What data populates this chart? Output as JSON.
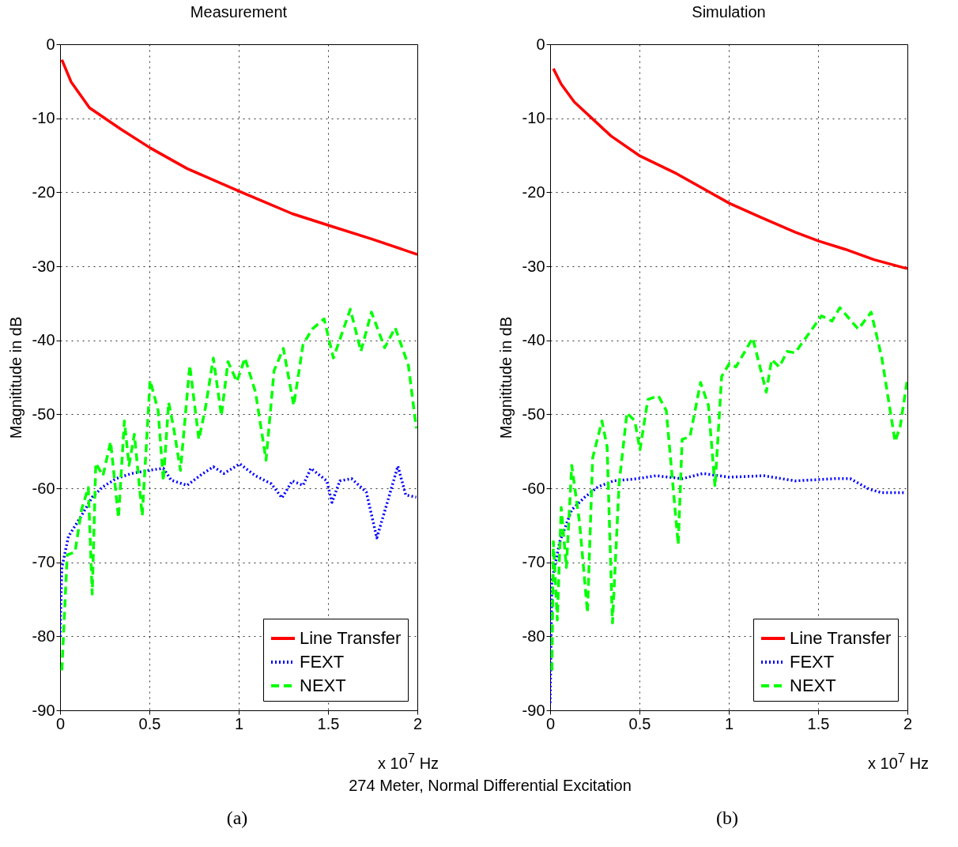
{
  "chart_data": [
    {
      "type": "line",
      "title": "Measurement",
      "xlabel": "x 10$^{7}$ Hz",
      "ylabel": "Magnititude in dB",
      "xlim": [
        0,
        2
      ],
      "xticks": [
        0,
        0.5,
        1,
        1.5,
        2
      ],
      "ylim": [
        -90,
        0
      ],
      "yticks": [
        -90,
        -80,
        -70,
        -60,
        -50,
        -40,
        -30,
        -20,
        -10,
        0
      ],
      "grid": true,
      "legend": "bottom right",
      "annotations": [
        "274 Meter, Normal Differential Excitation",
        "(a)"
      ],
      "series": [
        {
          "name": "Line Transfer",
          "color": "#ff0000",
          "line_style": "solid",
          "x": [
            0.01,
            0.062,
            0.165,
            0.342,
            0.504,
            0.711,
            1.006,
            1.3,
            1.507,
            1.743,
            2.0
          ],
          "values": [
            -2.1,
            -5.1,
            -8.6,
            -11.5,
            -14.0,
            -16.8,
            -19.9,
            -22.9,
            -24.5,
            -26.3,
            -28.4
          ]
        },
        {
          "name": "FEXT",
          "color": "#0000ff",
          "line_style": "dotted",
          "x": [
            0.0,
            0.01,
            0.047,
            0.12,
            0.18,
            0.24,
            0.313,
            0.4,
            0.49,
            0.578,
            0.622,
            0.711,
            0.8,
            0.858,
            0.917,
            1.006,
            1.094,
            1.183,
            1.242,
            1.3,
            1.36,
            1.404,
            1.493,
            1.522,
            1.566,
            1.632,
            1.714,
            1.773,
            1.832,
            1.891,
            1.935,
            1.994
          ],
          "values": [
            -80,
            -70.7,
            -66.5,
            -63.7,
            -61.2,
            -59.8,
            -58.7,
            -58.0,
            -57.6,
            -57.3,
            -58.9,
            -59.6,
            -58.0,
            -57.1,
            -58.0,
            -56.7,
            -58.3,
            -59.4,
            -61.3,
            -59.0,
            -59.6,
            -57.3,
            -59.0,
            -61.9,
            -59.0,
            -58.7,
            -60.5,
            -66.7,
            -61.9,
            -57.0,
            -60.9,
            -61.2
          ]
        },
        {
          "name": "NEXT",
          "color": "#00ff00",
          "line_style": "dashed",
          "x": [
            0.01,
            0.04,
            0.084,
            0.12,
            0.158,
            0.18,
            0.2,
            0.24,
            0.283,
            0.327,
            0.36,
            0.386,
            0.416,
            0.46,
            0.504,
            0.549,
            0.578,
            0.608,
            0.637,
            0.674,
            0.726,
            0.777,
            0.814,
            0.858,
            0.903,
            0.94,
            0.99,
            1.035,
            1.094,
            1.153,
            1.198,
            1.25,
            1.308,
            1.36,
            1.411,
            1.478,
            1.53,
            1.625,
            1.684,
            1.743,
            1.817,
            1.876,
            1.95,
            1.994
          ],
          "values": [
            -84.6,
            -69.0,
            -68.6,
            -62.9,
            -59.9,
            -74.3,
            -56.6,
            -58.3,
            -53.7,
            -64.0,
            -50.9,
            -56.9,
            -52.7,
            -63.7,
            -45.4,
            -49.5,
            -59.0,
            -48.4,
            -52.0,
            -57.6,
            -43.4,
            -53.4,
            -49.1,
            -42.4,
            -50.2,
            -42.9,
            -45.6,
            -42.4,
            -47.0,
            -56.2,
            -44.1,
            -41.1,
            -48.8,
            -40.6,
            -38.5,
            -37.1,
            -42.4,
            -35.8,
            -41.5,
            -36.2,
            -41.0,
            -38.3,
            -43.4,
            -51.9
          ]
        }
      ]
    },
    {
      "type": "line",
      "title": "Simulation",
      "xlabel": "x 10$^{7}$ Hz",
      "ylabel": "Magnititude in dB",
      "xlim": [
        0,
        2
      ],
      "xticks": [
        0,
        0.5,
        1,
        1.5,
        2
      ],
      "ylim": [
        -90,
        0
      ],
      "yticks": [
        -90,
        -80,
        -70,
        -60,
        -50,
        -40,
        -30,
        -20,
        -10,
        0
      ],
      "grid": true,
      "legend": "bottom right",
      "annotations": [
        "(b)"
      ],
      "series": [
        {
          "name": "Line Transfer",
          "color": "#ff0000",
          "line_style": "solid",
          "x": [
            0.018,
            0.062,
            0.135,
            0.341,
            0.503,
            0.709,
            1.004,
            1.18,
            1.372,
            1.504,
            1.651,
            1.813,
            1.98,
            2.0
          ],
          "values": [
            -3.3,
            -5.4,
            -7.8,
            -12.4,
            -15.1,
            -17.5,
            -21.5,
            -23.4,
            -25.4,
            -26.6,
            -27.7,
            -29.1,
            -30.2,
            -30.3
          ]
        },
        {
          "name": "FEXT",
          "color": "#0000ff",
          "line_style": "dotted",
          "x": [
            0.0,
            0.01,
            0.054,
            0.121,
            0.194,
            0.268,
            0.356,
            0.49,
            0.592,
            0.74,
            0.856,
            1.004,
            1.195,
            1.371,
            1.592,
            1.68,
            1.784,
            1.857,
            1.99
          ],
          "values": [
            -89,
            -72.5,
            -67.2,
            -62.9,
            -61.2,
            -59.8,
            -59.0,
            -58.7,
            -58.3,
            -58.7,
            -58.0,
            -58.5,
            -58.3,
            -59.0,
            -58.7,
            -58.7,
            -60.1,
            -60.6,
            -60.6
          ]
        },
        {
          "name": "NEXT",
          "color": "#00ff00",
          "line_style": "dashed",
          "x": [
            0.01,
            0.018,
            0.04,
            0.062,
            0.091,
            0.121,
            0.165,
            0.209,
            0.238,
            0.29,
            0.319,
            0.349,
            0.386,
            0.43,
            0.474,
            0.503,
            0.547,
            0.606,
            0.65,
            0.717,
            0.739,
            0.783,
            0.842,
            0.886,
            0.923,
            0.96,
            1.004,
            1.04,
            1.134,
            1.21,
            1.24,
            1.283,
            1.327,
            1.371,
            1.445,
            1.519,
            1.578,
            1.622,
            1.725,
            1.797,
            1.857,
            1.931,
            1.96,
            2.0
          ],
          "values": [
            -84.6,
            -67.2,
            -77.8,
            -62.6,
            -70.7,
            -56.9,
            -64.7,
            -76.8,
            -55.9,
            -50.9,
            -54.4,
            -78.2,
            -59.4,
            -49.8,
            -50.9,
            -54.8,
            -48.0,
            -47.5,
            -49.5,
            -67.6,
            -53.4,
            -53.0,
            -45.7,
            -48.8,
            -59.8,
            -44.9,
            -43.1,
            -43.6,
            -39.7,
            -47.0,
            -42.6,
            -43.6,
            -41.5,
            -41.7,
            -39.2,
            -36.7,
            -37.4,
            -35.6,
            -38.5,
            -36.2,
            -42.4,
            -53.7,
            -51.6,
            -45.2
          ]
        }
      ]
    }
  ]
}
